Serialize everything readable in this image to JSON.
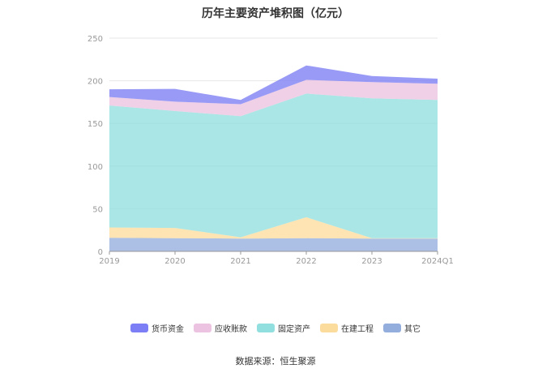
{
  "title": "历年主要资产堆积图（亿元）",
  "source": "数据来源：恒生聚源",
  "chart_data": {
    "type": "area",
    "stacked": true,
    "title": "历年主要资产堆积图（亿元）",
    "categories": [
      "2019",
      "2020",
      "2021",
      "2022",
      "2023",
      "2024Q1"
    ],
    "ylim": [
      0,
      250
    ],
    "yticks": [
      "0",
      "50",
      "100",
      "150",
      "200",
      "250"
    ],
    "grid": true,
    "legend_position": "bottom",
    "series": [
      {
        "name": "其它",
        "values": [
          16,
          15.5,
          15,
          15.5,
          15,
          15
        ],
        "color": "#93aedd"
      },
      {
        "name": "在建工程",
        "values": [
          12,
          12,
          1.5,
          24.5,
          0.5,
          0.5
        ],
        "color": "#fcdc9c"
      },
      {
        "name": "固定资产",
        "values": [
          143,
          137,
          142,
          145,
          164,
          162
        ],
        "color": "#92dfdf"
      },
      {
        "name": "应收账款",
        "values": [
          10,
          11,
          14,
          16,
          19,
          19
        ],
        "color": "#ecc3e0"
      },
      {
        "name": "货币资金",
        "values": [
          9,
          15,
          5,
          17,
          7,
          6
        ],
        "color": "#7b7ef4"
      }
    ],
    "legend_order": [
      "货币资金",
      "应收账款",
      "固定资产",
      "在建工程",
      "其它"
    ]
  }
}
